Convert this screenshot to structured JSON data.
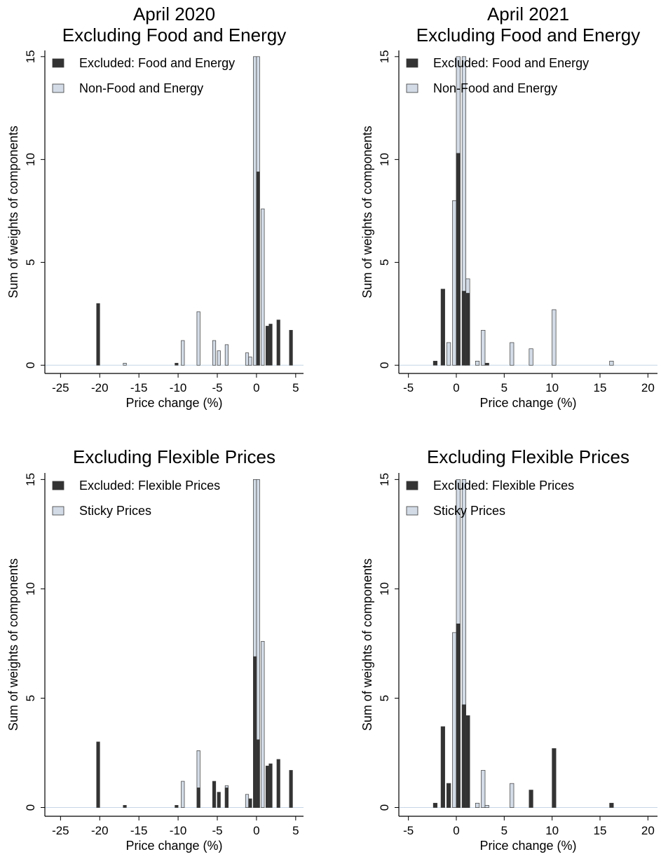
{
  "chart_data": [
    {
      "type": "bar",
      "title": "April 2020",
      "subtitle": "Excluding Food and Energy",
      "xlabel": "Price change (%)",
      "ylabel": "Sum of weights of components",
      "xlim": [
        -27,
        6
      ],
      "ylim": [
        -0.4,
        15.3
      ],
      "xticks": [
        "-25",
        "-20",
        "-15",
        "-10",
        "-5",
        "0",
        "5"
      ],
      "yticks": [
        "0",
        "5",
        "10",
        "15"
      ],
      "legend_position": "top-left",
      "series": [
        {
          "name": "Excluded: Food and Energy",
          "color": "#333333",
          "x": [
            -20.2,
            -10.2,
            0.2,
            1.4,
            1.8,
            2.8,
            4.4
          ],
          "values": [
            3.0,
            0.1,
            9.4,
            1.9,
            2.0,
            2.2,
            1.7
          ]
        },
        {
          "name": "Non-Food and Energy",
          "color": "#d2dbe6",
          "x": [
            -16.8,
            -9.4,
            -7.4,
            -5.4,
            -4.8,
            -3.8,
            -1.2,
            -0.8,
            -0.2,
            0.2,
            0.8
          ],
          "values": [
            0.1,
            1.2,
            2.6,
            1.2,
            0.7,
            1.0,
            0.6,
            0.4,
            15,
            15,
            7.6
          ]
        }
      ]
    },
    {
      "type": "bar",
      "title": "April 2021",
      "subtitle": "Excluding Food and Energy",
      "xlabel": "Price change (%)",
      "ylabel": "Sum of weights of components",
      "xlim": [
        -6,
        21
      ],
      "ylim": [
        -0.4,
        15.3
      ],
      "xticks": [
        "-5",
        "0",
        "5",
        "10",
        "15",
        "20"
      ],
      "yticks": [
        "0",
        "5",
        "10",
        "15"
      ],
      "legend_position": "top-left",
      "series": [
        {
          "name": "Excluded: Food and Energy",
          "color": "#333333",
          "x": [
            -2.2,
            -1.4,
            0.2,
            0.8,
            1.2,
            3.2
          ],
          "values": [
            0.2,
            3.7,
            10.3,
            3.6,
            3.5,
            0.1
          ]
        },
        {
          "name": "Non-Food and Energy",
          "color": "#d2dbe6",
          "x": [
            -0.8,
            -0.2,
            0.2,
            0.8,
            1.2,
            2.2,
            2.8,
            5.8,
            7.8,
            10.2,
            16.2
          ],
          "values": [
            1.1,
            8.0,
            15,
            15,
            4.2,
            0.2,
            1.7,
            1.1,
            0.8,
            2.7,
            0.2
          ]
        }
      ]
    },
    {
      "type": "bar",
      "title": "Excluding Flexible Prices",
      "xlabel": "Price change (%)",
      "ylabel": "Sum of weights of components",
      "xlim": [
        -27,
        6
      ],
      "ylim": [
        -0.4,
        15.3
      ],
      "xticks": [
        "-25",
        "-20",
        "-15",
        "-10",
        "-5",
        "0",
        "5"
      ],
      "yticks": [
        "0",
        "5",
        "10",
        "15"
      ],
      "legend_position": "top-left",
      "series": [
        {
          "name": "Excluded: Flexible Prices",
          "color": "#333333",
          "x": [
            -20.2,
            -16.8,
            -10.2,
            -7.4,
            -5.4,
            -4.8,
            -3.8,
            -0.8,
            -0.2,
            0.2,
            1.4,
            1.8,
            2.8,
            4.4
          ],
          "values": [
            3.0,
            0.1,
            0.1,
            0.9,
            1.2,
            0.7,
            0.9,
            0.4,
            6.9,
            3.1,
            1.9,
            2.0,
            2.2,
            1.7
          ]
        },
        {
          "name": "Sticky Prices",
          "color": "#d2dbe6",
          "x": [
            -9.4,
            -7.4,
            -3.8,
            -1.2,
            -0.2,
            0.2,
            0.8
          ],
          "values": [
            1.2,
            2.6,
            1.0,
            0.6,
            15,
            15,
            7.6
          ]
        }
      ]
    },
    {
      "type": "bar",
      "title": "Excluding Flexible Prices",
      "xlabel": "Price change (%)",
      "ylabel": "Sum of weights of components",
      "xlim": [
        -6,
        21
      ],
      "ylim": [
        -0.4,
        15.3
      ],
      "xticks": [
        "-5",
        "0",
        "5",
        "10",
        "15",
        "20"
      ],
      "yticks": [
        "0",
        "5",
        "10",
        "15"
      ],
      "legend_position": "top-left",
      "series": [
        {
          "name": "Excluded: Flexible Prices",
          "color": "#333333",
          "x": [
            -2.2,
            -1.4,
            -0.8,
            0.2,
            0.8,
            1.2,
            7.8,
            10.2,
            16.2
          ],
          "values": [
            0.2,
            3.7,
            1.1,
            8.4,
            4.7,
            4.2,
            0.8,
            2.7,
            0.2
          ]
        },
        {
          "name": "Sticky Prices",
          "color": "#d2dbe6",
          "x": [
            -0.8,
            -0.2,
            0.2,
            0.8,
            1.2,
            2.2,
            2.8,
            3.2,
            5.8
          ],
          "values": [
            1.1,
            8.0,
            15,
            15,
            4.2,
            0.2,
            1.7,
            0.1,
            1.1
          ]
        }
      ]
    }
  ]
}
